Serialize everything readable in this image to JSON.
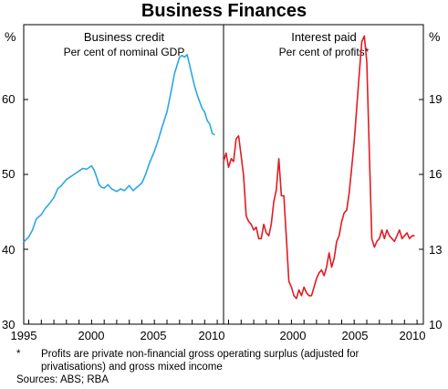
{
  "title": "Business Finances",
  "footnote": {
    "marker": "*",
    "text_line1": "Profits are private non-financial gross operating surplus (adjusted for",
    "text_line2": "privatisations) and gross mixed income"
  },
  "sources": "Sources: ABS; RBA",
  "chart_data": [
    {
      "type": "line",
      "title": "Business credit",
      "subtitle": "Per cent of nominal GDP",
      "units_label": "%",
      "y_axis_side": "left",
      "ylim": [
        30,
        65
      ],
      "yticks": [
        "30",
        "40",
        "50",
        "60"
      ],
      "xlim": [
        1994.6,
        2010.5
      ],
      "xticks": [
        "1995",
        "2000",
        "2005",
        "2010"
      ],
      "color": "#2aa8e0",
      "x": [
        1994.6,
        1995.0,
        1995.3,
        1995.6,
        1996.0,
        1996.3,
        1996.6,
        1997.0,
        1997.3,
        1997.6,
        1998.0,
        1998.3,
        1998.6,
        1999.0,
        1999.3,
        1999.6,
        2000.0,
        2000.2,
        2000.4,
        2000.6,
        2000.8,
        2001.0,
        2001.3,
        2001.6,
        2002.0,
        2002.3,
        2002.6,
        2003.0,
        2003.3,
        2003.6,
        2004.0,
        2004.3,
        2004.6,
        2005.0,
        2005.3,
        2005.6,
        2006.0,
        2006.3,
        2006.6,
        2007.0,
        2007.2,
        2007.4,
        2007.6,
        2007.8,
        2008.0,
        2008.2,
        2008.4,
        2008.6,
        2008.8,
        2009.0,
        2009.2,
        2009.4,
        2009.6,
        2009.8
      ],
      "y": [
        39.6,
        40.2,
        41.0,
        42.3,
        42.8,
        43.5,
        44.0,
        44.8,
        45.8,
        46.2,
        46.9,
        47.2,
        47.5,
        47.9,
        48.2,
        48.1,
        48.5,
        48.0,
        47.2,
        46.3,
        46.0,
        45.9,
        46.3,
        45.8,
        45.5,
        45.8,
        45.6,
        46.2,
        45.6,
        46.0,
        46.5,
        47.5,
        48.8,
        50.2,
        51.5,
        53.0,
        54.8,
        57.0,
        59.3,
        61.2,
        61.4,
        61.2,
        61.5,
        60.3,
        59.0,
        57.8,
        56.8,
        56.0,
        55.2,
        54.8,
        53.8,
        53.4,
        52.3,
        52.1
      ]
    },
    {
      "type": "line",
      "title": "Interest paid",
      "subtitle": "Per cent of profits*",
      "units_label": "%",
      "y_axis_side": "right",
      "ylim": [
        10,
        20.5
      ],
      "yticks": [
        "10",
        "13",
        "16",
        "19"
      ],
      "xlim": [
        1994.6,
        2010.5
      ],
      "xticks": [
        "2000",
        "2005",
        "2010"
      ],
      "color": "#e31b23",
      "x": [
        1994.6,
        1994.8,
        1995.0,
        1995.2,
        1995.4,
        1995.6,
        1995.8,
        1996.0,
        1996.2,
        1996.4,
        1996.6,
        1996.8,
        1997.0,
        1997.2,
        1997.4,
        1997.6,
        1997.8,
        1998.0,
        1998.2,
        1998.4,
        1998.6,
        1998.8,
        1999.0,
        1999.2,
        1999.4,
        1999.6,
        1999.8,
        2000.0,
        2000.2,
        2000.4,
        2000.6,
        2000.8,
        2001.0,
        2001.2,
        2001.4,
        2001.6,
        2001.8,
        2002.0,
        2002.2,
        2002.4,
        2002.6,
        2002.8,
        2003.0,
        2003.2,
        2003.4,
        2003.6,
        2003.8,
        2004.0,
        2004.2,
        2004.4,
        2004.6,
        2004.8,
        2005.0,
        2005.2,
        2005.4,
        2005.6,
        2005.8,
        2006.0,
        2006.2,
        2006.4,
        2006.6,
        2006.8,
        2007.0,
        2007.2,
        2007.4,
        2007.6,
        2007.8,
        2008.0,
        2008.2,
        2008.4,
        2008.6,
        2008.8,
        2009.0,
        2009.2,
        2009.4,
        2009.6,
        2009.8
      ],
      "y": [
        15.7,
        16.0,
        15.5,
        15.8,
        15.7,
        16.5,
        16.6,
        15.9,
        15.2,
        13.8,
        13.6,
        13.5,
        13.3,
        13.4,
        13.0,
        13.0,
        13.5,
        13.2,
        13.1,
        13.5,
        14.3,
        14.7,
        15.8,
        14.5,
        14.5,
        13.0,
        11.5,
        11.3,
        11.0,
        10.9,
        11.2,
        11.0,
        11.3,
        11.1,
        11.0,
        11.0,
        11.3,
        11.6,
        11.8,
        11.9,
        11.7,
        12.0,
        12.5,
        12.0,
        12.3,
        12.9,
        13.1,
        13.6,
        13.9,
        14.0,
        14.6,
        15.5,
        16.4,
        17.6,
        18.8,
        19.9,
        20.1,
        19.2,
        16.0,
        13.0,
        12.7,
        12.9,
        13.0,
        13.3,
        13.0,
        13.3,
        13.1,
        13.0,
        12.9,
        13.1,
        13.3,
        13.0,
        13.1,
        13.2,
        13.0,
        13.1,
        13.1
      ]
    }
  ]
}
